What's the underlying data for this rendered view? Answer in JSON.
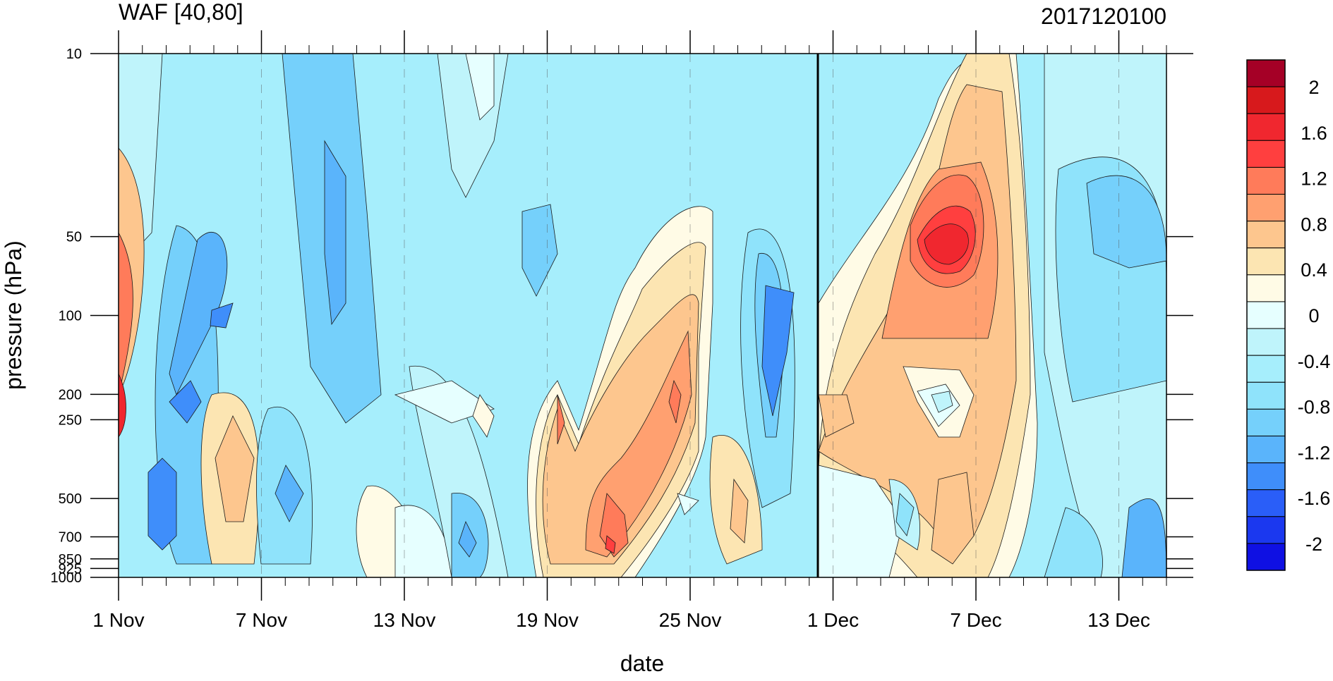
{
  "chart_data": {
    "type": "heatmap",
    "title_left": "WAF [40,80]",
    "title_right": "2017120100",
    "xlabel": "date",
    "ylabel": "pressure (hPa)",
    "x_ticks": [
      "1 Nov",
      "7 Nov",
      "13 Nov",
      "19 Nov",
      "25 Nov",
      "1 Dec",
      "7 Dec",
      "13 Dec"
    ],
    "y_ticks": [
      "10",
      "50",
      "100",
      "200",
      "250",
      "500",
      "700",
      "850",
      "925",
      "1000"
    ],
    "y_tick_values": [
      10,
      50,
      100,
      200,
      250,
      500,
      700,
      850,
      925,
      1000
    ],
    "y_scale": "log",
    "ylim": [
      1000,
      10
    ],
    "x_range_days": [
      "1 Nov",
      "15 Dec"
    ],
    "colorbar": {
      "labels": [
        "2",
        "1.6",
        "1.2",
        "0.8",
        "0.4",
        "0",
        "-0.4",
        "-0.8",
        "-1.2",
        "-1.6",
        "-2"
      ],
      "colors": [
        "#a50026",
        "#d7191c",
        "#f0272f",
        "#ff3f3f",
        "#ff7b5a",
        "#ffa070",
        "#fdc68e",
        "#fce5b2",
        "#fffbe6",
        "#e6ffff",
        "#bff4fb",
        "#a6eefc",
        "#8fe3fb",
        "#75d0fb",
        "#5ab4fb",
        "#3f8efa",
        "#2a5ef8",
        "#1b38ef",
        "#0f10e3"
      ],
      "placement": "right"
    },
    "grid": "dashed vertical at major ticks",
    "vertical_marker": "1 Dec",
    "features": [
      {
        "kind": "positive",
        "peak": 2.0,
        "time": "1 Nov",
        "pressure": 200
      },
      {
        "kind": "negative",
        "peak": -1.6,
        "time": "3 Nov",
        "pressure": 500
      },
      {
        "kind": "negative",
        "peak": -1.2,
        "time": "5 Nov",
        "pressure": 100
      },
      {
        "kind": "positive",
        "peak": 0.8,
        "time": "6 Nov",
        "pressure": 500
      },
      {
        "kind": "negative",
        "peak": -1.2,
        "time": "8 Nov",
        "pressure": 500
      },
      {
        "kind": "positive",
        "peak": 1.2,
        "time": "23 Nov",
        "pressure": 700
      },
      {
        "kind": "positive",
        "peak": 1.2,
        "time": "25 Nov",
        "pressure": 200
      },
      {
        "kind": "negative",
        "peak": -1.2,
        "time": "29 Nov",
        "pressure": 150
      },
      {
        "kind": "positive",
        "peak": 2.0,
        "time": "7 Dec",
        "pressure": 50
      }
    ]
  }
}
